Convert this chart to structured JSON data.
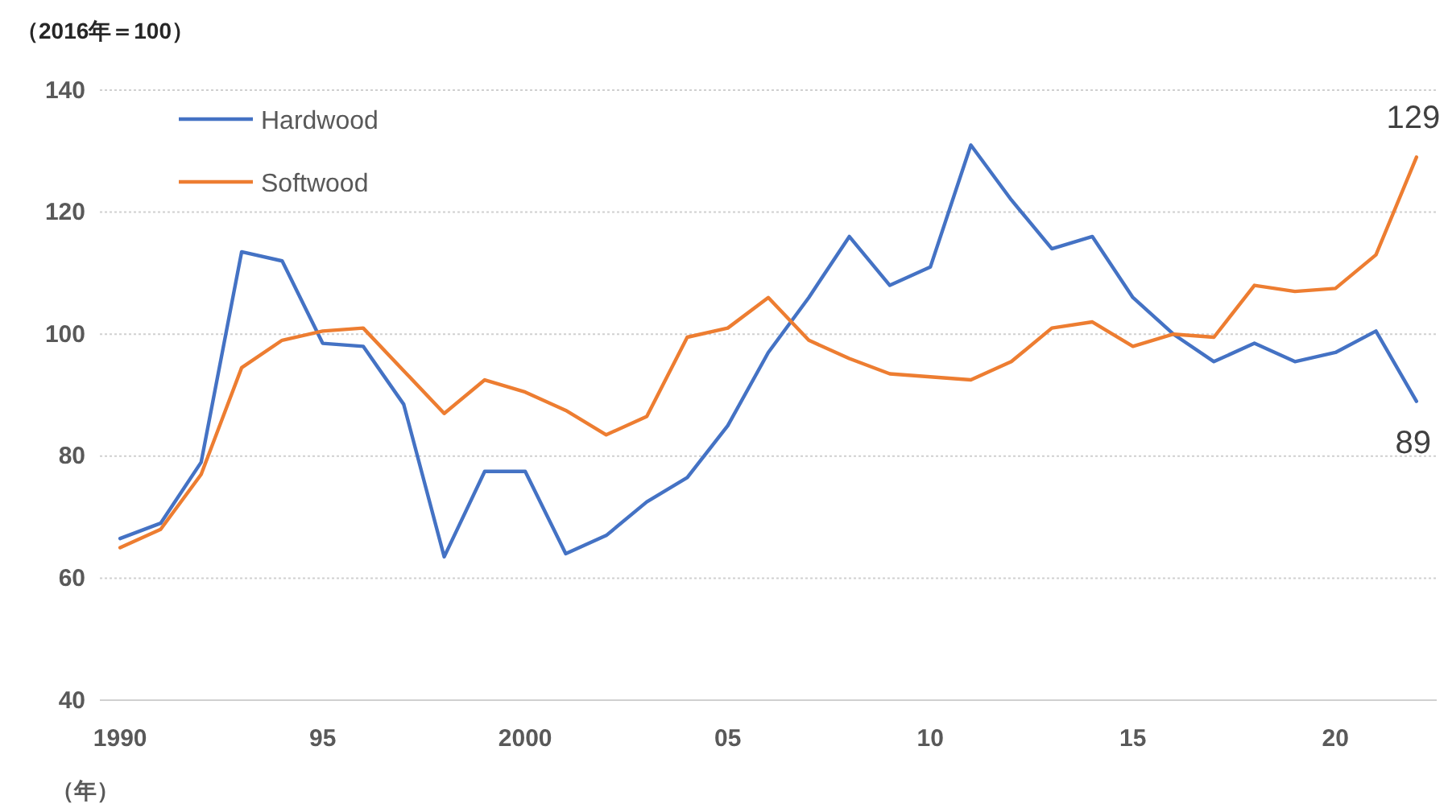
{
  "chart_data": {
    "type": "line",
    "ylabel": "（2016年＝100）",
    "xlabel": "（年）",
    "x": [
      1990,
      1991,
      1992,
      1993,
      1994,
      1995,
      1996,
      1997,
      1998,
      1999,
      2000,
      2001,
      2002,
      2003,
      2004,
      2005,
      2006,
      2007,
      2008,
      2009,
      2010,
      2011,
      2012,
      2013,
      2014,
      2015,
      2016,
      2017,
      2018,
      2019,
      2020,
      2021,
      2022
    ],
    "series": [
      {
        "name": "Hardwood",
        "color": "#4472c4",
        "values": [
          66.5,
          69,
          79,
          113.5,
          112,
          98.5,
          98,
          88.5,
          63.5,
          77.5,
          77.5,
          64,
          67,
          72.5,
          76.5,
          85,
          97,
          106,
          116,
          108,
          111,
          131,
          122,
          114,
          116,
          106,
          100,
          95.5,
          98.5,
          95.5,
          97,
          100.5,
          89
        ],
        "value_labels": [
          null,
          null,
          null,
          null,
          null,
          null,
          null,
          null,
          null,
          null,
          null,
          null,
          null,
          null,
          null,
          null,
          null,
          null,
          null,
          null,
          null,
          null,
          null,
          null,
          null,
          null,
          null,
          null,
          null,
          null,
          null,
          null,
          "89"
        ]
      },
      {
        "name": "Softwood",
        "color": "#ed7d31",
        "values": [
          65,
          68,
          77,
          94.5,
          99,
          100.5,
          101,
          94,
          87,
          92.5,
          90.5,
          87.5,
          83.5,
          86.5,
          99.5,
          101,
          106,
          99,
          96,
          93.5,
          93,
          92.5,
          95.5,
          101,
          102,
          98,
          100,
          99.5,
          108,
          107,
          107.5,
          113,
          129
        ],
        "value_labels": [
          null,
          null,
          null,
          null,
          null,
          null,
          null,
          null,
          null,
          null,
          null,
          null,
          null,
          null,
          null,
          null,
          null,
          null,
          null,
          null,
          null,
          null,
          null,
          null,
          null,
          null,
          null,
          null,
          null,
          null,
          null,
          null,
          "129"
        ]
      }
    ],
    "xlim": [
      1989.5,
      2022.5
    ],
    "xticks": [
      1990,
      {
        "value": 1995,
        "label": "95"
      },
      2000,
      {
        "value": 2005,
        "label": "05"
      },
      {
        "value": 2010,
        "label": "10"
      },
      {
        "value": 2015,
        "label": "15"
      },
      {
        "value": 2020,
        "label": "20"
      }
    ],
    "ylim": [
      40,
      140
    ],
    "yticks": [
      40,
      60,
      80,
      100,
      120,
      140
    ],
    "grid": "y",
    "legend": "top left",
    "marker": "none",
    "line_style": "solid"
  }
}
